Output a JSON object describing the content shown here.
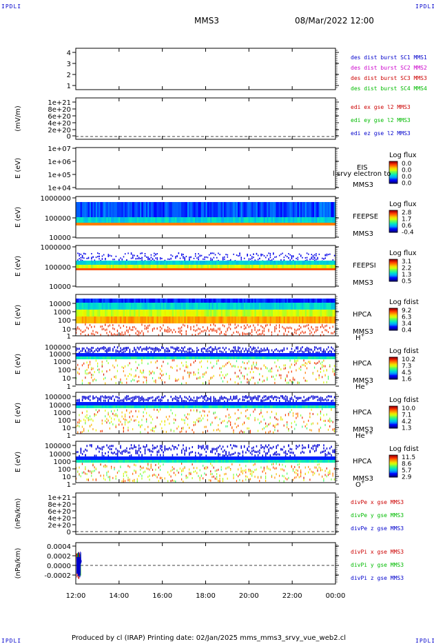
{
  "header": {
    "corner_label": "IPDLI",
    "spacecraft": "MMS3",
    "datetime": "08/Mar/2022 12:00"
  },
  "footer": {
    "text": "Produced by cl (IRAP)   Printing date: 02/Jan/2025   mms_mms3_srvy_vue_web2.cl"
  },
  "colors": {
    "mms1": "#0000cc",
    "mms2": "#cc00cc",
    "mms3": "#cc0000",
    "mms4": "#00bb00",
    "x": "#cc0000",
    "y": "#00bb00",
    "z": "#0000cc"
  },
  "chart_data": [
    {
      "type": "line",
      "panel": "spacecraft-config",
      "ylabel": "",
      "yticks": [
        "4",
        "3",
        "2",
        "1"
      ],
      "legend": [
        "des dist burst SC1 MMS1",
        "des dist burst SC2 MMS2",
        "des dist burst SC3 MMS3",
        "des dist burst SC4 MMS4"
      ]
    },
    {
      "type": "line",
      "panel": "edi-efield",
      "ylabel": "(mV/m)",
      "yticks": [
        "1e+21",
        "8e+20",
        "6e+20",
        "4e+20",
        "2e+20",
        "0"
      ],
      "legend": [
        "edi ex gse l2 MMS3",
        "edi ey gse l2 MMS3",
        "edi ez gse l2 MMS3"
      ]
    },
    {
      "type": "heatmap",
      "panel": "eis",
      "ylabel": "E (eV)",
      "yticks": [
        "1e+07",
        "1e+06",
        "1e+05",
        "1e+04"
      ],
      "instrument": [
        "EIS",
        "MMS3"
      ],
      "overlap_text": "l srvy electron to",
      "colorbar_title": "Log flux",
      "colorbar_ticks": [
        "0.0",
        "0.0",
        "0.0",
        "0.0"
      ]
    },
    {
      "type": "heatmap",
      "panel": "feepse",
      "ylabel": "E (eV)",
      "yticks": [
        "1000000",
        "100000",
        "10000"
      ],
      "instrument": [
        "FEEPSE",
        "MMS3"
      ],
      "colorbar_title": "Log flux",
      "colorbar_ticks": [
        "2.8",
        "1.7",
        "0.6",
        "-0.4"
      ]
    },
    {
      "type": "heatmap",
      "panel": "feepsi",
      "ylabel": "E (eV)",
      "yticks": [
        "1000000",
        "100000",
        "10000"
      ],
      "instrument": [
        "FEEPSI",
        "MMS3"
      ],
      "colorbar_title": "Log flux",
      "colorbar_ticks": [
        "3.1",
        "2.2",
        "1.3",
        "0.5"
      ]
    },
    {
      "type": "heatmap",
      "panel": "hpca-h",
      "ylabel": "E (eV)",
      "yticks": [
        "10000",
        "1000",
        "100",
        "10",
        "1"
      ],
      "instrument": [
        "HPCA",
        "MMS3"
      ],
      "species": "H",
      "species_sup": "+",
      "colorbar_title": "Log fdist",
      "colorbar_ticks": [
        "9.2",
        "6.3",
        "3.4",
        "0.4"
      ]
    },
    {
      "type": "heatmap",
      "panel": "hpca-he",
      "ylabel": "E (eV)",
      "yticks": [
        "100000",
        "10000",
        "1000",
        "100",
        "10",
        "1"
      ],
      "instrument": [
        "HPCA",
        "MMS3"
      ],
      "species": "He",
      "species_sup": "+",
      "colorbar_title": "Log fdist",
      "colorbar_ticks": [
        "10.2",
        "7.3",
        "4.5",
        "1.6"
      ]
    },
    {
      "type": "heatmap",
      "panel": "hpca-hepp",
      "ylabel": "E (eV)",
      "yticks": [
        "100000",
        "10000",
        "1000",
        "100",
        "10",
        "1"
      ],
      "instrument": [
        "HPCA",
        "MMS3"
      ],
      "species": "He",
      "species_sup": "++",
      "colorbar_title": "Log fdist",
      "colorbar_ticks": [
        "10.0",
        "7.1",
        "4.2",
        "1.3"
      ]
    },
    {
      "type": "heatmap",
      "panel": "hpca-o",
      "ylabel": "E (eV)",
      "yticks": [
        "100000",
        "10000",
        "1000",
        "100",
        "10",
        "1"
      ],
      "instrument": [
        "HPCA",
        "MMS3"
      ],
      "species": "O",
      "species_sup": "+",
      "colorbar_title": "Log fdist",
      "colorbar_ticks": [
        "11.5",
        "8.6",
        "5.7",
        "2.9"
      ]
    },
    {
      "type": "line",
      "panel": "divpe",
      "ylabel": "(nPa/km)",
      "yticks": [
        "1e+21",
        "8e+20",
        "6e+20",
        "4e+20",
        "2e+20",
        "0"
      ],
      "legend": [
        "divPe x gse MMS3",
        "divPe y gse MMS3",
        "divPe z gse MMS3"
      ]
    },
    {
      "type": "line",
      "panel": "divpi",
      "ylabel": "(nPa/km)",
      "yticks": [
        "0.0004",
        "0.0002",
        "0.0000",
        "-0.0002"
      ],
      "legend": [
        "divPi x gse MMS3",
        "divPi y gse MMS3",
        "divPi z gse MMS3"
      ]
    }
  ],
  "time_axis": {
    "ticks": [
      "12:00",
      "14:00",
      "16:00",
      "18:00",
      "20:00",
      "22:00",
      "00:00"
    ]
  }
}
